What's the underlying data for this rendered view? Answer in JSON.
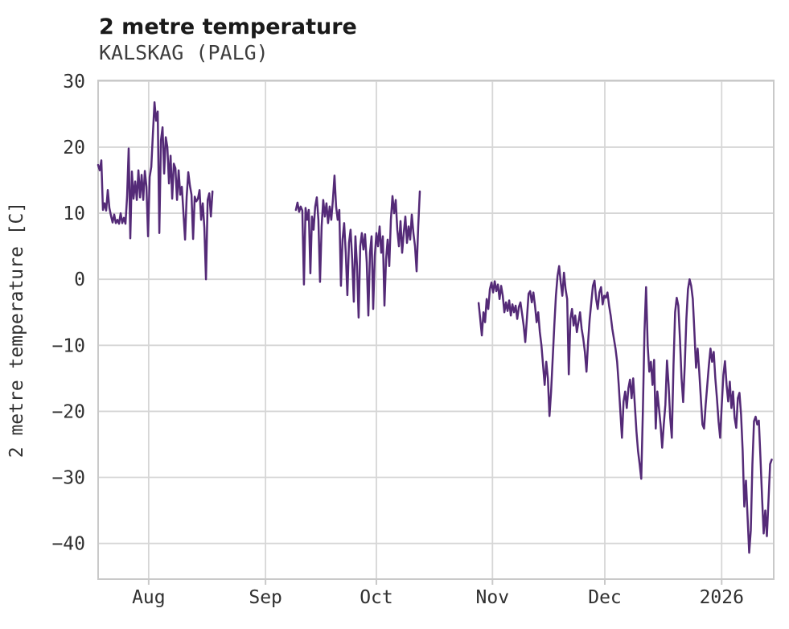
{
  "header": {
    "title": "2 metre temperature",
    "subtitle": "KALSKAG (PALG)"
  },
  "colors": {
    "line": "#542a77",
    "gridline": "#d6d6d6",
    "spine": "#c9c9c9",
    "title_text": "#1a1a1a",
    "subtitle_text": "#3d3d3d",
    "tick_text": "#303030",
    "background": "#ffffff"
  },
  "chart_data": {
    "type": "line",
    "title": "2 metre temperature",
    "subtitle": "KALSKAG (PALG)",
    "xlabel": "",
    "ylabel": "2 metre temperature [C]",
    "grid": true,
    "legend": "none",
    "x_unit": "days since mid-July (plot spans mid-Jul to mid-Jan 2026)",
    "xlim": [
      0,
      180.4
    ],
    "ylim": [
      -45.4,
      30.1
    ],
    "y_ticks": [
      {
        "v": 30,
        "label": "30"
      },
      {
        "v": 20,
        "label": "20"
      },
      {
        "v": 10,
        "label": "10"
      },
      {
        "v": 0,
        "label": "0"
      },
      {
        "v": -10,
        "label": "−10"
      },
      {
        "v": -20,
        "label": "−20"
      },
      {
        "v": -30,
        "label": "−30"
      },
      {
        "v": -40,
        "label": "−40"
      }
    ],
    "x_ticks": [
      {
        "day": 13.5,
        "label": "Aug"
      },
      {
        "day": 44.7,
        "label": "Sep"
      },
      {
        "day": 74.3,
        "label": "Oct"
      },
      {
        "day": 105.3,
        "label": "Nov"
      },
      {
        "day": 135.3,
        "label": "Dec"
      },
      {
        "day": 166.5,
        "label": "2026"
      }
    ],
    "series": [
      {
        "name": "observed-segment-1",
        "start_day": 0,
        "step_days": 0.43,
        "values": [
          17.3,
          16.5,
          18,
          10.5,
          11.5,
          10.4,
          13.5,
          10.8,
          9.6,
          8.6,
          9.8,
          8.5,
          9,
          8.4,
          10,
          8.5,
          9.3,
          8.4,
          12.5,
          19.8,
          6.2,
          16.3,
          12.2,
          14.8,
          12,
          16.5,
          12.4,
          15.8,
          12,
          16.4,
          14,
          6.5,
          15.5,
          17,
          22,
          26.8,
          24,
          25.4,
          7,
          21,
          23,
          16,
          21.5,
          20,
          14.5,
          18.7,
          12.2,
          17.5,
          16.8,
          12,
          16.5,
          12.8,
          14,
          10,
          6,
          12.5,
          16.2,
          14.2,
          12.8,
          6.1,
          12.5,
          11.8,
          12.2,
          13.5,
          9,
          11.5,
          7.8,
          0,
          12,
          13,
          9.5,
          13.3
        ]
      },
      {
        "name": "observed-segment-2",
        "start_day": 52.8,
        "step_days": 0.43,
        "values": [
          10.5,
          11.6,
          10.2,
          11,
          10.4,
          -0.8,
          10.8,
          9,
          10.5,
          0.9,
          9.5,
          7.5,
          11,
          12.4,
          9,
          -0.4,
          8,
          12,
          9.5,
          11.5,
          8.5,
          11,
          9,
          12,
          15.7,
          11,
          9,
          10.5,
          -1,
          6,
          8.5,
          4,
          -2.4,
          5.5,
          7.5,
          3,
          -3.4,
          6.5,
          2,
          -5.8,
          5,
          7,
          4.5,
          6.8,
          2.5,
          -5.5,
          4,
          6.5,
          -4.5,
          3.5,
          7,
          5,
          8,
          4,
          6.5,
          -4,
          3,
          6,
          2,
          9,
          12.6,
          10,
          12,
          7.5,
          5,
          8.8,
          4,
          7,
          9.5,
          5.5,
          8,
          6,
          9.8,
          7,
          5,
          1.2,
          8,
          13.3
        ]
      },
      {
        "name": "observed-segment-3",
        "start_day": 101.6,
        "step_days": 0.43,
        "values": [
          -3.6,
          -6,
          -8.5,
          -5,
          -6.5,
          -3,
          -4.5,
          -1.5,
          -0.5,
          -2,
          -0.3,
          -1.8,
          -0.8,
          -3,
          -1,
          -2.5,
          -5,
          -3.5,
          -4.8,
          -3.2,
          -5.5,
          -3.8,
          -5,
          -4,
          -6,
          -4.2,
          -3.5,
          -5.2,
          -7,
          -9.5,
          -6,
          -2.2,
          -1.8,
          -3.5,
          -2,
          -4,
          -6.5,
          -5,
          -8,
          -10,
          -13,
          -16,
          -12.5,
          -15,
          -20.7,
          -17,
          -12,
          -7,
          -2.5,
          0.5,
          2,
          -0.5,
          -2.5,
          1,
          -1.5,
          -3,
          -14.4,
          -6,
          -4.5,
          -7,
          -5.5,
          -8,
          -6.5,
          -5,
          -7.5,
          -9,
          -11,
          -14,
          -9.5,
          -6,
          -3.5,
          -1,
          -0.2,
          -3,
          -4.5,
          -2,
          -1.2,
          -3.8,
          -2.5,
          -2.8,
          -2,
          -4,
          -5.5,
          -7.5,
          -9,
          -10.5,
          -12.5,
          -16,
          -20,
          -24,
          -18.5,
          -17,
          -19.5,
          -16.5,
          -15.2,
          -18,
          -15,
          -19,
          -23,
          -26,
          -28,
          -30.2,
          -20,
          -8,
          -1.2,
          -10,
          -14,
          -12.5,
          -16,
          -12.2,
          -22.6,
          -17,
          -19.5,
          -22,
          -25.5,
          -22,
          -19,
          -12.3,
          -16,
          -21,
          -24,
          -13,
          -5,
          -2.8,
          -4,
          -9,
          -15,
          -18.6,
          -13,
          -6,
          -1.5,
          0,
          -1,
          -3,
          -8,
          -13.4,
          -10.5,
          -14,
          -18,
          -22,
          -22.6,
          -19,
          -16,
          -13,
          -10.5,
          -12.5,
          -11,
          -15,
          -18,
          -21.5,
          -24,
          -19,
          -14.5,
          -12.4,
          -16,
          -18.5,
          -15.5,
          -19.5,
          -17,
          -21,
          -22.5,
          -18,
          -17.2,
          -20.5,
          -26,
          -34.4,
          -30.5,
          -36,
          -41.4,
          -38,
          -28,
          -21.5,
          -20.8,
          -22,
          -21.4,
          -27,
          -33,
          -38.5,
          -35,
          -38.9,
          -33.5,
          -28,
          -27.3
        ]
      }
    ]
  }
}
